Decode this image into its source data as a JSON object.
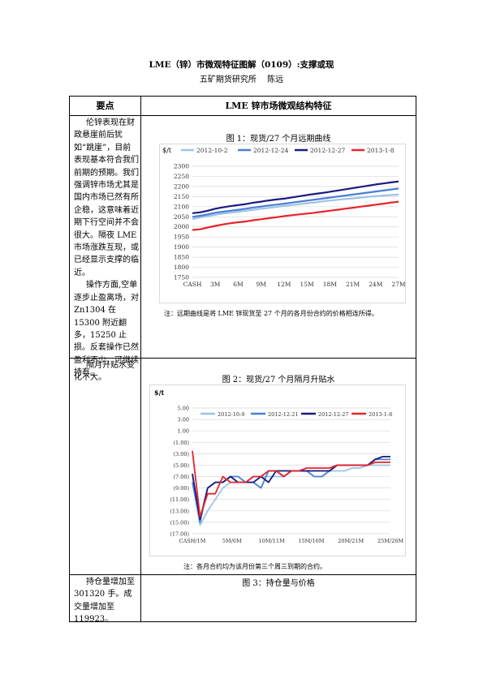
{
  "header": {
    "title": "LME（锌）市微观特征图解（0109）:支撑或现",
    "subtitle": "五矿期货研究所　 陈远"
  },
  "table": {
    "col1_header": "要点",
    "col2_header": "LME 锌市场微观结构特征"
  },
  "row1": {
    "para1": "伦锌表现在财政悬崖前后犹如“跳崖”，目前表现基本符合我们前期的预期。我们强调锌市场尤其是国内市场已然有所企稳，这意味着近期下行空间并不会很大。隔夜 LME 市场涨跌互现，或已经显示支撑的临近。",
    "para2": "操作方面,空单逐步止盈离场，对 Zn1304 在 15300 附近翻多，15250 止损。反套操作已然盈利不少，可继续持有。",
    "chart_title": "图 1：现货/27 个月远期曲线",
    "note": "注：远期曲线是将 LME 锌现货至 27 个月的各月份合约的价格相连所得。",
    "unit": "$/t"
  },
  "row2": {
    "text": "隔月升贴水变化不大。",
    "chart_title": "图 2：现货/27 个月隔月升贴水",
    "note": "注：各月合约均为该月份第三个周三到期的合约。",
    "unit": "$/t"
  },
  "row3": {
    "text": "持仓量增加至 301320 手。成交量增加至 119923。",
    "chart_title": "图 3：持仓量与价格"
  },
  "chart_data": [
    {
      "type": "line",
      "title": "图 1：现货/27 个月远期曲线",
      "ylabel": "$/t",
      "ylim": [
        1750,
        2300
      ],
      "yticks": [
        1750,
        1800,
        1850,
        1900,
        1950,
        2000,
        2050,
        2100,
        2150,
        2200,
        2250,
        2300
      ],
      "x_tick_labels": [
        "CASH",
        "3M",
        "6M",
        "9M",
        "12M",
        "15M",
        "18M",
        "21M",
        "24M",
        "27M"
      ],
      "x_count": 28,
      "grid": "horizontal",
      "legend": "top",
      "series": [
        {
          "name": "2012-10-2",
          "color": "#9dc3e6",
          "values": [
            2039,
            2047,
            2053,
            2060,
            2066,
            2070,
            2075,
            2080,
            2085,
            2090,
            2094,
            2099,
            2104,
            2108,
            2112,
            2117,
            2121,
            2126,
            2130,
            2134,
            2138,
            2141,
            2145,
            2149,
            2152,
            2155,
            2158,
            2160
          ]
        },
        {
          "name": "2012-12-24",
          "color": "#4a7fd4",
          "values": [
            2050,
            2055,
            2062,
            2070,
            2075,
            2080,
            2085,
            2090,
            2096,
            2101,
            2106,
            2110,
            2115,
            2120,
            2125,
            2130,
            2135,
            2140,
            2145,
            2150,
            2155,
            2160,
            2165,
            2170,
            2175,
            2180,
            2185,
            2190
          ]
        },
        {
          "name": "2012-12-27",
          "color": "#1a1a7c",
          "values": [
            2068,
            2072,
            2080,
            2090,
            2097,
            2103,
            2108,
            2113,
            2120,
            2125,
            2131,
            2136,
            2140,
            2146,
            2152,
            2158,
            2163,
            2168,
            2174,
            2180,
            2186,
            2192,
            2198,
            2204,
            2210,
            2215,
            2220,
            2225
          ]
        },
        {
          "name": "2013-1-8",
          "color": "#e8232a",
          "values": [
            1985,
            1988,
            1997,
            2005,
            2012,
            2018,
            2023,
            2027,
            2033,
            2038,
            2043,
            2048,
            2053,
            2058,
            2062,
            2066,
            2070,
            2075,
            2080,
            2085,
            2090,
            2095,
            2100,
            2105,
            2110,
            2115,
            2120,
            2125
          ]
        }
      ]
    },
    {
      "type": "line",
      "title": "图 2：现货/27 个月隔月升贴水",
      "ylabel": "$/t",
      "ylim": [
        -17,
        5
      ],
      "yticks": [
        5,
        3,
        1,
        -1,
        -3,
        -5,
        -7,
        -9,
        -11,
        -13,
        -15,
        -17
      ],
      "ytick_labels": [
        "5.00",
        "3.00",
        "1.00",
        "(1.00)",
        "(3.00)",
        "(5.00)",
        "(7.00)",
        "(9.00)",
        "(11.00)",
        "(13.00)",
        "(15.00)",
        "(17.00)"
      ],
      "x_tick_labels": [
        "CASH/1M",
        "5M/6M",
        "10M/11M",
        "15M/16M",
        "20M/21M",
        "25M/26M"
      ],
      "x_count": 27,
      "grid": "horizontal",
      "legend": "top",
      "series": [
        {
          "name": "2012-10-9",
          "color": "#9dc3e6",
          "values": [
            -7,
            -15.5,
            -13,
            -11,
            -9,
            -8,
            -8,
            -8,
            -7,
            -7,
            -7,
            -7,
            -7,
            -6,
            -6,
            -6,
            -6,
            -6,
            -6,
            -6,
            -6,
            -5.5,
            -5.5,
            -5,
            -5,
            -5,
            -5
          ]
        },
        {
          "name": "2012-12-21",
          "color": "#4a7fd4",
          "values": [
            -8,
            -15,
            -9,
            -8,
            -8,
            -7,
            -7,
            -8,
            -8,
            -9,
            -6,
            -6,
            -7,
            -6,
            -6,
            -6,
            -7,
            -7,
            -6,
            -5,
            -5,
            -5,
            -5,
            -5,
            -4,
            -4,
            -4
          ]
        },
        {
          "name": "2012-12-27",
          "color": "#1a1a7c",
          "values": [
            -6.5,
            -14.5,
            -9,
            -8,
            -8,
            -7,
            -8,
            -8,
            -8,
            -7,
            -8,
            -6,
            -6,
            -6,
            -6,
            -6,
            -6,
            -6,
            -6,
            -5,
            -5,
            -5,
            -5,
            -5,
            -4,
            -3.5,
            -3.5
          ]
        },
        {
          "name": "2013-1-8",
          "color": "#e8232a",
          "values": [
            -2.5,
            -14,
            -10,
            -10,
            -7,
            -8,
            -8,
            -8,
            -7,
            -7,
            -6,
            -6,
            -7,
            -6,
            -6,
            -5.5,
            -5.5,
            -5.5,
            -5.5,
            -5,
            -5,
            -5,
            -5,
            -5,
            -4.5,
            -4.5,
            -4.5
          ]
        }
      ]
    }
  ]
}
